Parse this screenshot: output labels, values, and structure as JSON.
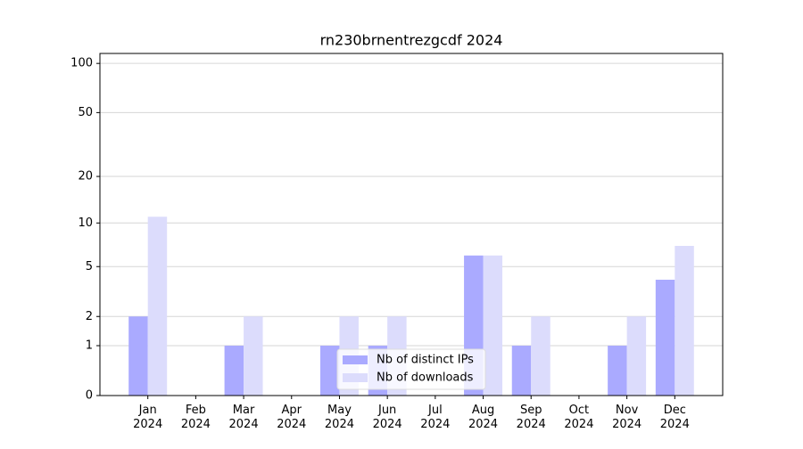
{
  "chart_data": {
    "type": "bar",
    "title": "rn230brnentrezgcdf 2024",
    "categories": [
      "Jan 2024",
      "Feb 2024",
      "Mar 2024",
      "Apr 2024",
      "May 2024",
      "Jun 2024",
      "Jul 2024",
      "Aug 2024",
      "Sep 2024",
      "Oct 2024",
      "Nov 2024",
      "Dec 2024"
    ],
    "series": [
      {
        "name": "Nb of distinct IPs",
        "color": "#aaaaff",
        "values": [
          2,
          0,
          1,
          0,
          1,
          1,
          0,
          6,
          1,
          0,
          1,
          4
        ]
      },
      {
        "name": "Nb of downloads",
        "color": "#dcdcfc",
        "values": [
          11,
          0,
          2,
          0,
          2,
          2,
          0,
          6,
          2,
          0,
          2,
          7
        ]
      }
    ],
    "yscale": "log1p",
    "ylim": [
      0,
      115
    ],
    "yticks": [
      0,
      1,
      2,
      5,
      10,
      20,
      50,
      100
    ],
    "grid": true,
    "legend": "lower center"
  }
}
